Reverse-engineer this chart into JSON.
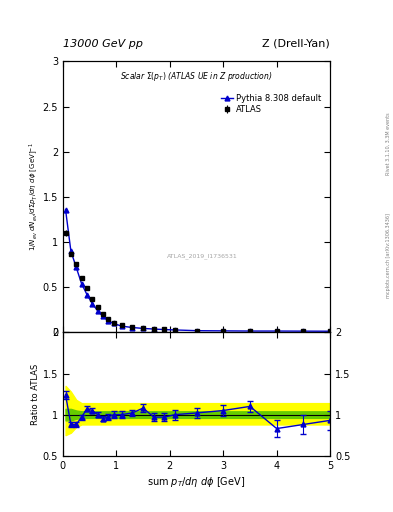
{
  "title_left": "13000 GeV pp",
  "title_right": "Z (Drell-Yan)",
  "plot_title": "Scalar Σ(p_{T}) (ATLAS UE in Z production)",
  "ylabel_main": "1/N_{ev} dN_{ev}/dsum p_{T}/dη dϕ  [GeV]⁻¹",
  "ylabel_ratio": "Ratio to ATLAS",
  "xlabel": "sum p_{T}/dη dϕ [GeV]",
  "watermark": "ATLAS_2019_I1736531",
  "right_label": "Rivet 3.1.10, 3.3M events",
  "right_label2": "mcplots.cern.ch [arXiv:1306.3436]",
  "xlim": [
    0,
    5
  ],
  "ylim_main": [
    0,
    3.0
  ],
  "ylim_ratio": [
    0.5,
    2.0
  ],
  "atlas_x": [
    0.05,
    0.15,
    0.25,
    0.35,
    0.45,
    0.55,
    0.65,
    0.75,
    0.85,
    0.95,
    1.1,
    1.3,
    1.5,
    1.7,
    1.9,
    2.1,
    2.5,
    3.0,
    3.5,
    4.0,
    4.5,
    5.0
  ],
  "atlas_y": [
    1.1,
    0.87,
    0.76,
    0.6,
    0.49,
    0.37,
    0.28,
    0.21,
    0.15,
    0.11,
    0.08,
    0.06,
    0.05,
    0.04,
    0.04,
    0.03,
    0.02,
    0.02,
    0.02,
    0.02,
    0.02,
    0.02
  ],
  "atlas_yerr": [
    0.03,
    0.02,
    0.02,
    0.015,
    0.012,
    0.01,
    0.008,
    0.007,
    0.006,
    0.005,
    0.004,
    0.003,
    0.003,
    0.002,
    0.002,
    0.002,
    0.001,
    0.001,
    0.001,
    0.002,
    0.002,
    0.002
  ],
  "pythia_x": [
    0.05,
    0.15,
    0.25,
    0.35,
    0.45,
    0.55,
    0.65,
    0.75,
    0.85,
    0.95,
    1.1,
    1.3,
    1.5,
    1.7,
    1.9,
    2.1,
    2.5,
    3.0,
    3.5,
    4.0,
    4.5,
    5.0
  ],
  "pythia_y": [
    1.36,
    0.9,
    0.72,
    0.54,
    0.42,
    0.32,
    0.24,
    0.18,
    0.13,
    0.1,
    0.07,
    0.055,
    0.045,
    0.038,
    0.032,
    0.028,
    0.02,
    0.018,
    0.016,
    0.016,
    0.015,
    0.014
  ],
  "ratio_x": [
    0.05,
    0.15,
    0.25,
    0.35,
    0.45,
    0.55,
    0.65,
    0.75,
    0.85,
    0.95,
    1.1,
    1.3,
    1.5,
    1.7,
    1.9,
    2.1,
    2.5,
    3.0,
    3.5,
    4.0,
    4.5,
    5.0
  ],
  "ratio_y": [
    1.24,
    0.88,
    0.88,
    0.97,
    1.07,
    1.05,
    1.0,
    0.95,
    0.97,
    1.0,
    1.0,
    1.02,
    1.08,
    0.97,
    0.97,
    1.0,
    1.02,
    1.05,
    1.1,
    0.83,
    0.88,
    0.93
  ],
  "ratio_yerr": [
    0.05,
    0.03,
    0.03,
    0.03,
    0.03,
    0.03,
    0.03,
    0.03,
    0.04,
    0.04,
    0.04,
    0.04,
    0.05,
    0.05,
    0.05,
    0.06,
    0.06,
    0.07,
    0.07,
    0.1,
    0.12,
    0.12
  ],
  "green_band_y_low": [
    0.93,
    0.93,
    0.95,
    0.96,
    0.96,
    0.96,
    0.96,
    0.96,
    0.96,
    0.96,
    0.96,
    0.96,
    0.96,
    0.96,
    0.96,
    0.96,
    0.96,
    0.96,
    0.96,
    0.96,
    0.96,
    0.96
  ],
  "green_band_y_high": [
    1.07,
    1.07,
    1.05,
    1.04,
    1.04,
    1.04,
    1.04,
    1.04,
    1.04,
    1.04,
    1.04,
    1.04,
    1.04,
    1.04,
    1.04,
    1.04,
    1.04,
    1.04,
    1.04,
    1.04,
    1.04,
    1.04
  ],
  "yellow_band_y_low": [
    0.75,
    0.78,
    0.85,
    0.88,
    0.88,
    0.88,
    0.88,
    0.88,
    0.88,
    0.88,
    0.88,
    0.88,
    0.88,
    0.88,
    0.88,
    0.88,
    0.88,
    0.88,
    0.88,
    0.88,
    0.88,
    0.88
  ],
  "yellow_band_y_high": [
    1.35,
    1.28,
    1.18,
    1.14,
    1.14,
    1.14,
    1.14,
    1.14,
    1.14,
    1.14,
    1.14,
    1.14,
    1.14,
    1.14,
    1.14,
    1.14,
    1.14,
    1.14,
    1.14,
    1.14,
    1.14,
    1.14
  ],
  "atlas_color": "black",
  "pythia_color": "#0000cc",
  "green_color": "#66cc00",
  "yellow_color": "#ffff00",
  "bg_color": "white"
}
